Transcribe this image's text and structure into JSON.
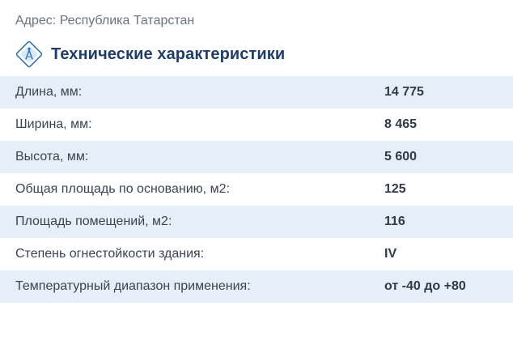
{
  "address": "Адрес: Республика Татарстан",
  "section": {
    "title": "Технические характеристики",
    "icon": "drawing-compass-icon"
  },
  "specs": [
    {
      "label": "Длина, мм:",
      "value": "14 775"
    },
    {
      "label": "Ширина, мм:",
      "value": "8 465"
    },
    {
      "label": "Высота, мм:",
      "value": "5 600"
    },
    {
      "label": "Общая площадь по основанию, м2:",
      "value": "125"
    },
    {
      "label": "Площадь помещений, м2:",
      "value": "116"
    },
    {
      "label": "Степень огнестойкости здания:",
      "value": "IV"
    },
    {
      "label": "Температурный диапазон применения:",
      "value": "от -40 до +80"
    }
  ],
  "colors": {
    "title": "#1f3d6b",
    "row_shade": "#e6eef7",
    "icon_accent": "#4a8fd4"
  }
}
